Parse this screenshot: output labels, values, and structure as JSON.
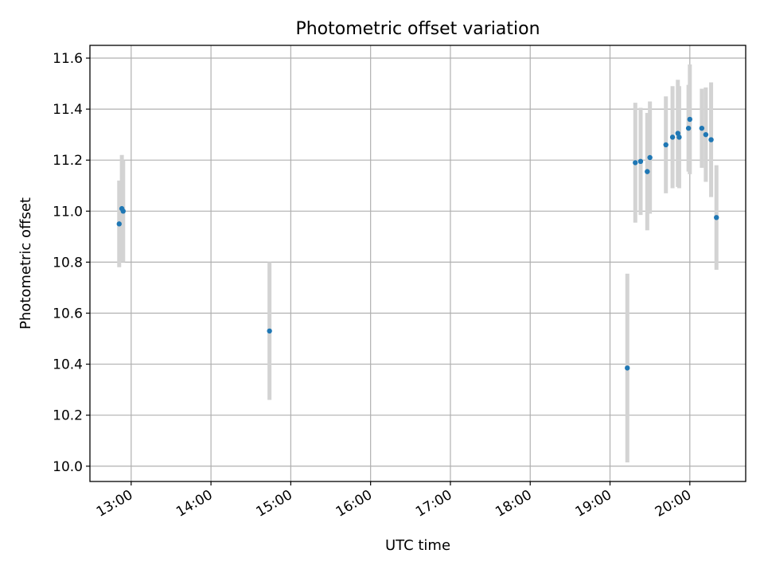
{
  "chart_data": {
    "type": "scatter",
    "title": "Photometric offset variation",
    "xlabel": "UTC time",
    "ylabel": "Photometric offset",
    "x_ticks": [
      "13:00",
      "14:00",
      "15:00",
      "16:00",
      "17:00",
      "18:00",
      "19:00",
      "20:00"
    ],
    "y_ticks": [
      10.0,
      10.2,
      10.4,
      10.6,
      10.8,
      11.0,
      11.2,
      11.4,
      11.6
    ],
    "xlim": [
      "12:29",
      "20:42"
    ],
    "ylim": [
      9.94,
      11.65
    ],
    "grid": true,
    "point_color": "#1f77b4",
    "errorbar_color": "#d3d3d3",
    "points": [
      {
        "t": "12:51",
        "y": 10.95,
        "err": 0.17
      },
      {
        "t": "12:53",
        "y": 11.01,
        "err": 0.21
      },
      {
        "t": "12:54",
        "y": 11.0,
        "err": 0.2
      },
      {
        "t": "14:44",
        "y": 10.53,
        "err": 0.27
      },
      {
        "t": "19:13",
        "y": 10.385,
        "err": 0.37
      },
      {
        "t": "19:19",
        "y": 11.19,
        "err": 0.235
      },
      {
        "t": "19:23",
        "y": 11.195,
        "err": 0.21
      },
      {
        "t": "19:28",
        "y": 11.155,
        "err": 0.23
      },
      {
        "t": "19:30",
        "y": 11.21,
        "err": 0.22
      },
      {
        "t": "19:42",
        "y": 11.26,
        "err": 0.19
      },
      {
        "t": "19:47",
        "y": 11.29,
        "err": 0.2
      },
      {
        "t": "19:51",
        "y": 11.305,
        "err": 0.21
      },
      {
        "t": "19:52",
        "y": 11.29,
        "err": 0.2
      },
      {
        "t": "19:59",
        "y": 11.325,
        "err": 0.17
      },
      {
        "t": "20:00",
        "y": 11.36,
        "err": 0.215
      },
      {
        "t": "20:09",
        "y": 11.325,
        "err": 0.155
      },
      {
        "t": "20:12",
        "y": 11.3,
        "err": 0.185
      },
      {
        "t": "20:16",
        "y": 11.28,
        "err": 0.225
      },
      {
        "t": "20:20",
        "y": 10.975,
        "err": 0.205
      }
    ]
  }
}
